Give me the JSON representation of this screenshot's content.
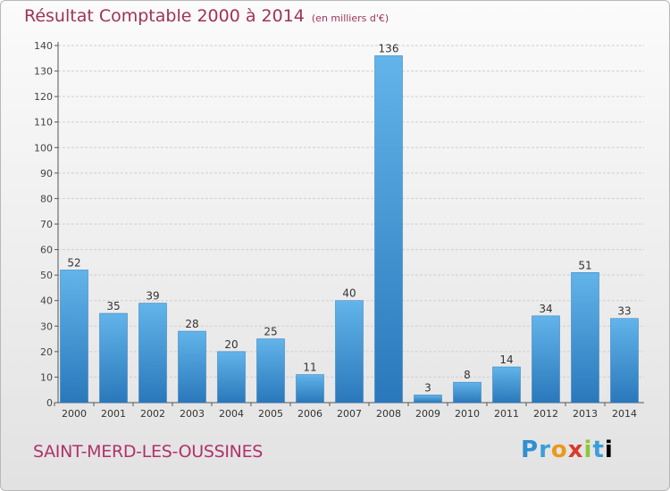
{
  "chart_data": {
    "type": "bar",
    "title": "Résultat Comptable 2000 à 2014",
    "subtitle": "(en milliers d'€)",
    "categories": [
      "2000",
      "2001",
      "2002",
      "2003",
      "2004",
      "2005",
      "2006",
      "2007",
      "2008",
      "2009",
      "2010",
      "2011",
      "2012",
      "2013",
      "2014"
    ],
    "values": [
      52,
      35,
      39,
      28,
      20,
      25,
      11,
      40,
      136,
      3,
      8,
      14,
      34,
      51,
      33
    ],
    "ylim": [
      0,
      140
    ],
    "yticks": [
      0,
      10,
      20,
      30,
      40,
      50,
      60,
      70,
      80,
      90,
      100,
      110,
      120,
      130,
      140
    ],
    "xlabel": "",
    "ylabel": "",
    "grid": true
  },
  "commune": "SAINT-MERD-LES-OUSSINES",
  "logo": {
    "letters": [
      "P",
      "r",
      "o",
      "x",
      "i",
      "t",
      "i"
    ],
    "text": "Proxiti"
  },
  "colors": {
    "bar_light": "#5aaee6",
    "bar_dark": "#2f7fc0",
    "title": "#a0325a",
    "grid": "#cfcfcf"
  }
}
